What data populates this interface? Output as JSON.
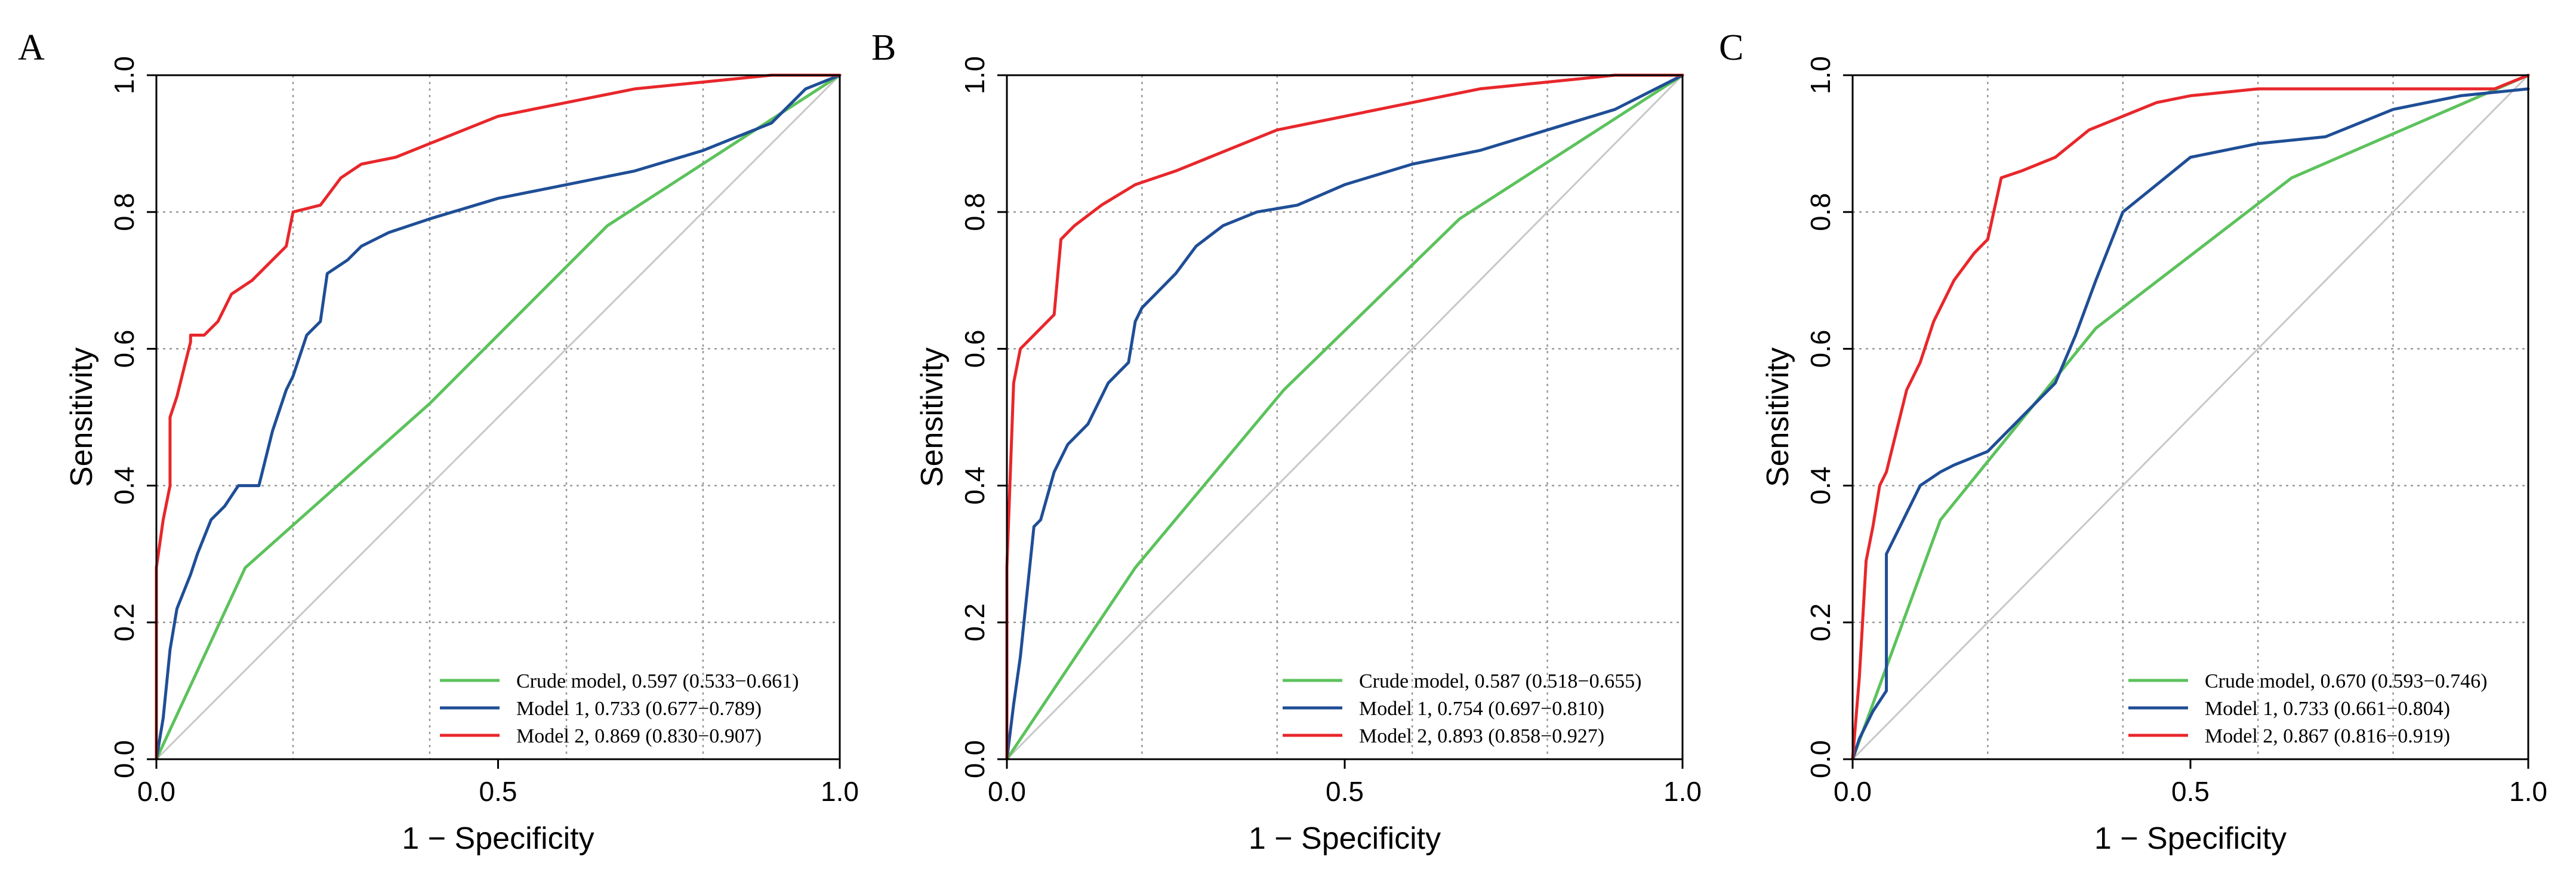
{
  "chart_data": [
    {
      "type": "line",
      "panel": "A",
      "xlabel": "1 − Specificity",
      "ylabel": "Sensitivity",
      "xlim": [
        0,
        1
      ],
      "ylim": [
        0,
        1
      ],
      "xticks": [
        "0.0",
        "0.5",
        "1.0"
      ],
      "yticks": [
        "0.0",
        "0.2",
        "0.4",
        "0.6",
        "0.8",
        "1.0"
      ],
      "grid": true,
      "legend_position": "bottom-right",
      "reference_line": {
        "x": [
          0,
          1
        ],
        "y": [
          0,
          1
        ],
        "color": "#c8c8c8"
      },
      "series": [
        {
          "name": "Crude model",
          "label": "Crude model, 0.597 (0.533−0.661)",
          "color": "#5cc25c",
          "x": [
            0,
            0.13,
            0.4,
            0.66,
            1.0
          ],
          "y": [
            0,
            0.28,
            0.52,
            0.78,
            1.0
          ]
        },
        {
          "name": "Model 1",
          "label": "Model 1, 0.733 (0.677−0.789)",
          "color": "#1f4e96",
          "x": [
            0,
            0.01,
            0.02,
            0.03,
            0.05,
            0.06,
            0.08,
            0.1,
            0.12,
            0.15,
            0.17,
            0.19,
            0.2,
            0.22,
            0.24,
            0.25,
            0.28,
            0.3,
            0.34,
            0.4,
            0.5,
            0.6,
            0.7,
            0.8,
            0.85,
            0.9,
            0.95,
            1.0
          ],
          "y": [
            0,
            0.06,
            0.16,
            0.22,
            0.27,
            0.3,
            0.35,
            0.37,
            0.4,
            0.4,
            0.48,
            0.54,
            0.56,
            0.62,
            0.64,
            0.71,
            0.73,
            0.75,
            0.77,
            0.79,
            0.82,
            0.84,
            0.86,
            0.89,
            0.91,
            0.93,
            0.98,
            1.0
          ]
        },
        {
          "name": "Model 2",
          "label": "Model 2, 0.869 (0.830−0.907)",
          "color": "#e8272b",
          "x": [
            0,
            0,
            0.01,
            0.02,
            0.02,
            0.03,
            0.04,
            0.05,
            0.05,
            0.07,
            0.09,
            0.11,
            0.14,
            0.19,
            0.2,
            0.24,
            0.27,
            0.3,
            0.35,
            0.4,
            0.5,
            0.6,
            0.7,
            0.8,
            0.9,
            1.0
          ],
          "y": [
            0,
            0.28,
            0.35,
            0.4,
            0.5,
            0.53,
            0.57,
            0.61,
            0.62,
            0.62,
            0.64,
            0.68,
            0.7,
            0.75,
            0.8,
            0.81,
            0.85,
            0.87,
            0.88,
            0.9,
            0.94,
            0.96,
            0.98,
            0.99,
            1.0,
            1.0
          ]
        }
      ]
    },
    {
      "type": "line",
      "panel": "B",
      "xlabel": "1 − Specificity",
      "ylabel": "Sensitivity",
      "xlim": [
        0,
        1
      ],
      "ylim": [
        0,
        1
      ],
      "xticks": [
        "0.0",
        "0.5",
        "1.0"
      ],
      "yticks": [
        "0.0",
        "0.2",
        "0.4",
        "0.6",
        "0.8",
        "1.0"
      ],
      "grid": true,
      "legend_position": "bottom-right",
      "reference_line": {
        "x": [
          0,
          1
        ],
        "y": [
          0,
          1
        ],
        "color": "#c8c8c8"
      },
      "series": [
        {
          "name": "Crude model",
          "label": "Crude model, 0.587 (0.518−0.655)",
          "color": "#5cc25c",
          "x": [
            0,
            0.19,
            0.41,
            0.67,
            1.0
          ],
          "y": [
            0,
            0.28,
            0.54,
            0.79,
            1.0
          ]
        },
        {
          "name": "Model 1",
          "label": "Model 1, 0.754 (0.697−0.810)",
          "color": "#1f4e96",
          "x": [
            0,
            0.01,
            0.02,
            0.04,
            0.05,
            0.07,
            0.09,
            0.12,
            0.15,
            0.18,
            0.19,
            0.2,
            0.22,
            0.25,
            0.28,
            0.32,
            0.37,
            0.43,
            0.5,
            0.6,
            0.7,
            0.8,
            0.9,
            1.0
          ],
          "y": [
            0,
            0.08,
            0.15,
            0.34,
            0.35,
            0.42,
            0.46,
            0.49,
            0.55,
            0.58,
            0.64,
            0.66,
            0.68,
            0.71,
            0.75,
            0.78,
            0.8,
            0.81,
            0.84,
            0.87,
            0.89,
            0.92,
            0.95,
            1.0
          ]
        },
        {
          "name": "Model 2",
          "label": "Model 2, 0.893 (0.858−0.927)",
          "color": "#e8272b",
          "x": [
            0,
            0,
            0.01,
            0.02,
            0.03,
            0.07,
            0.08,
            0.1,
            0.14,
            0.19,
            0.25,
            0.3,
            0.35,
            0.4,
            0.5,
            0.6,
            0.7,
            0.8,
            0.9,
            1.0
          ],
          "y": [
            0,
            0.28,
            0.55,
            0.6,
            0.61,
            0.65,
            0.76,
            0.78,
            0.81,
            0.84,
            0.86,
            0.88,
            0.9,
            0.92,
            0.94,
            0.96,
            0.98,
            0.99,
            1.0,
            1.0
          ]
        }
      ]
    },
    {
      "type": "line",
      "panel": "C",
      "xlabel": "1 − Specificity",
      "ylabel": "Sensitivity",
      "xlim": [
        0,
        1
      ],
      "ylim": [
        0,
        1
      ],
      "xticks": [
        "0.0",
        "0.5",
        "1.0"
      ],
      "yticks": [
        "0.0",
        "0.2",
        "0.4",
        "0.6",
        "0.8",
        "1.0"
      ],
      "grid": true,
      "legend_position": "bottom-right",
      "reference_line": {
        "x": [
          0,
          1
        ],
        "y": [
          0,
          1
        ],
        "color": "#c8c8c8"
      },
      "series": [
        {
          "name": "Crude model",
          "label": "Crude model, 0.670 (0.593−0.746)",
          "color": "#5cc25c",
          "x": [
            0,
            0.13,
            0.36,
            0.65,
            1.0
          ],
          "y": [
            0,
            0.35,
            0.63,
            0.85,
            1.0
          ]
        },
        {
          "name": "Model 1",
          "label": "Model 1, 0.733 (0.661−0.804)",
          "color": "#1f4e96",
          "x": [
            0,
            0.01,
            0.03,
            0.05,
            0.05,
            0.08,
            0.1,
            0.13,
            0.15,
            0.2,
            0.25,
            0.3,
            0.33,
            0.36,
            0.38,
            0.4,
            0.45,
            0.5,
            0.6,
            0.7,
            0.8,
            0.9,
            1.0
          ],
          "y": [
            0,
            0.03,
            0.07,
            0.1,
            0.3,
            0.36,
            0.4,
            0.42,
            0.43,
            0.45,
            0.5,
            0.55,
            0.62,
            0.7,
            0.75,
            0.8,
            0.84,
            0.88,
            0.9,
            0.91,
            0.95,
            0.97,
            0.98
          ]
        },
        {
          "name": "Model 2",
          "label": "Model 2, 0.867 (0.816−0.919)",
          "color": "#e8272b",
          "x": [
            0,
            0.01,
            0.02,
            0.03,
            0.04,
            0.05,
            0.08,
            0.1,
            0.12,
            0.15,
            0.18,
            0.2,
            0.22,
            0.25,
            0.3,
            0.35,
            0.4,
            0.45,
            0.5,
            0.6,
            0.8,
            0.95,
            1.0
          ],
          "y": [
            0,
            0.12,
            0.29,
            0.34,
            0.4,
            0.42,
            0.54,
            0.58,
            0.64,
            0.7,
            0.74,
            0.76,
            0.85,
            0.86,
            0.88,
            0.92,
            0.94,
            0.96,
            0.97,
            0.98,
            0.98,
            0.98,
            1.0
          ]
        }
      ]
    }
  ]
}
